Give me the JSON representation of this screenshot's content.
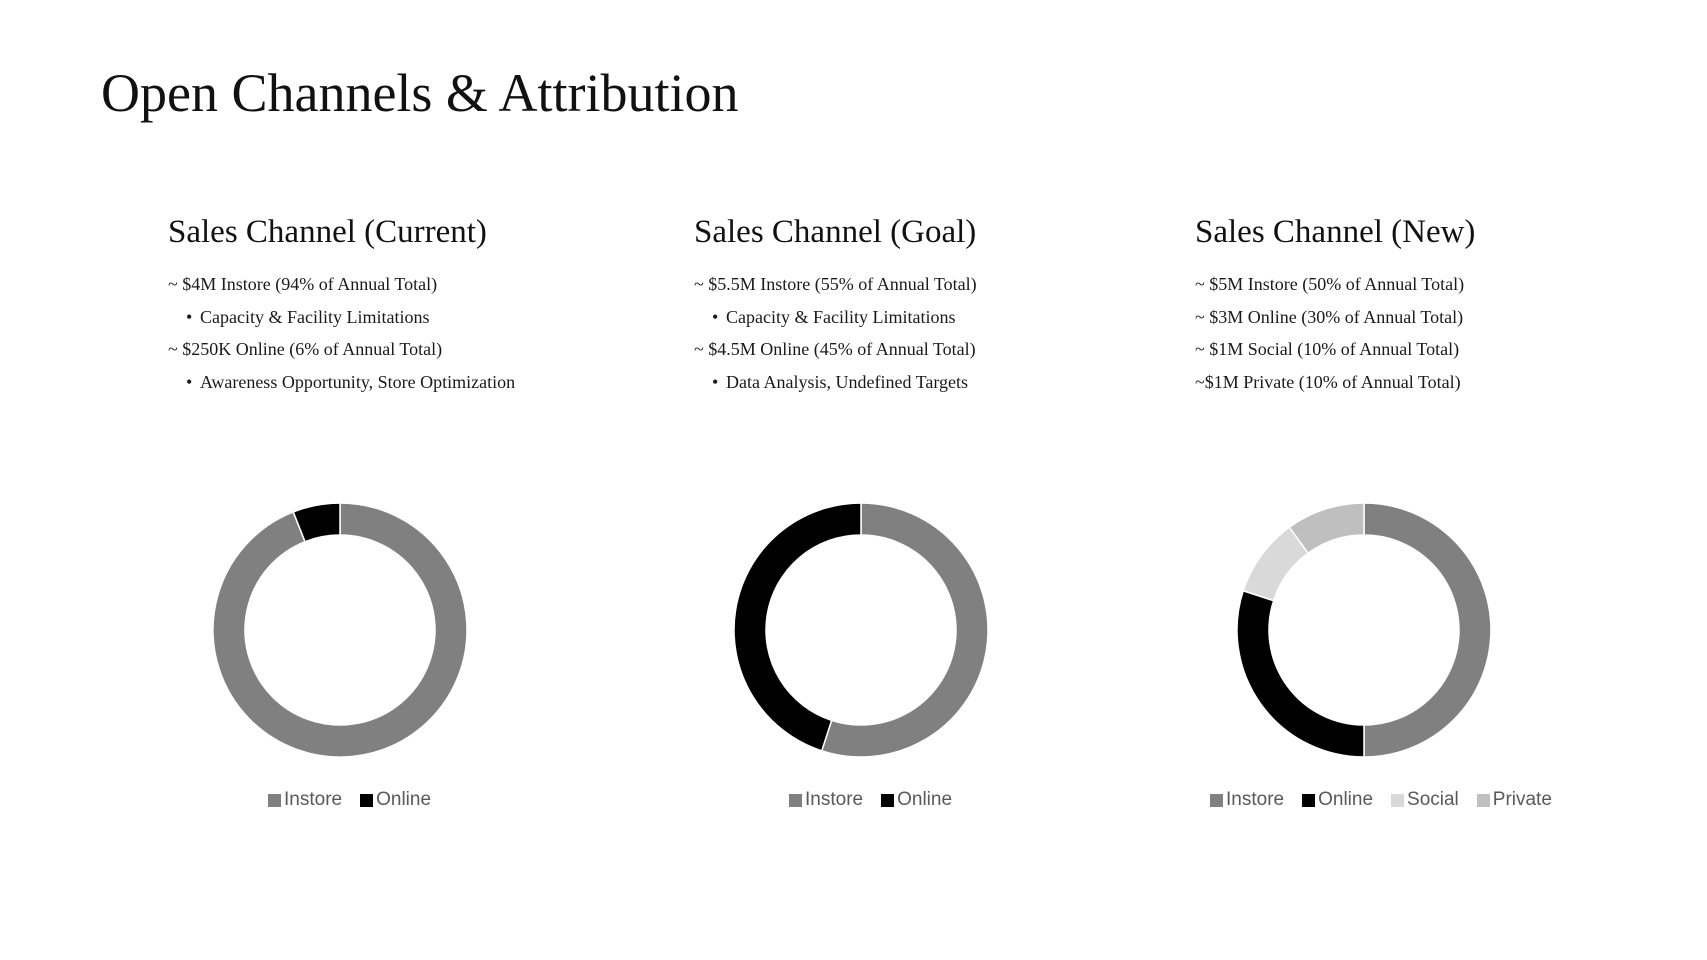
{
  "slide": {
    "title": "Open Channels & Attribution"
  },
  "columns": [
    {
      "heading": "Sales Channel (Current)",
      "notes": [
        {
          "text": "~ $4M Instore (94% of Annual Total)",
          "level": 0
        },
        {
          "text": "Capacity & Facility Limitations",
          "level": 1
        },
        {
          "text": "~ $250K Online (6% of Annual Total)",
          "level": 0
        },
        {
          "text": "Awareness Opportunity, Store Optimization",
          "level": 1
        }
      ]
    },
    {
      "heading": "Sales Channel (Goal)",
      "notes": [
        {
          "text": "~ $5.5M Instore (55% of Annual Total)",
          "level": 0
        },
        {
          "text": "Capacity & Facility Limitations",
          "level": 1
        },
        {
          "text": "~ $4.5M Online (45% of Annual Total)",
          "level": 0
        },
        {
          "text": "Data Analysis, Undefined Targets",
          "level": 1
        }
      ]
    },
    {
      "heading": "Sales Channel (New)",
      "notes": [
        {
          "text": "~ $5M Instore (50% of Annual Total)",
          "level": 0
        },
        {
          "text": "~ $3M Online (30% of Annual Total)",
          "level": 0
        },
        {
          "text": "~ $1M Social (10% of Annual Total)",
          "level": 0
        },
        {
          "text": "~$1M Private (10% of Annual Total)",
          "level": 0
        }
      ]
    }
  ],
  "bullet_glyph": "•",
  "chart_data": [
    {
      "type": "pie",
      "style": "donut",
      "categories": [
        "Instore",
        "Online"
      ],
      "values": [
        94,
        6
      ],
      "colors": [
        "#808080",
        "#000000"
      ],
      "legend": "bottom"
    },
    {
      "type": "pie",
      "style": "donut",
      "categories": [
        "Instore",
        "Online"
      ],
      "values": [
        55,
        45
      ],
      "colors": [
        "#808080",
        "#000000"
      ],
      "legend": "bottom"
    },
    {
      "type": "pie",
      "style": "donut",
      "categories": [
        "Instore",
        "Online",
        "Social",
        "Private"
      ],
      "values": [
        50,
        30,
        10,
        10
      ],
      "colors": [
        "#808080",
        "#000000",
        "#d9d9d9",
        "#bfbfbf"
      ],
      "legend": "bottom"
    }
  ]
}
